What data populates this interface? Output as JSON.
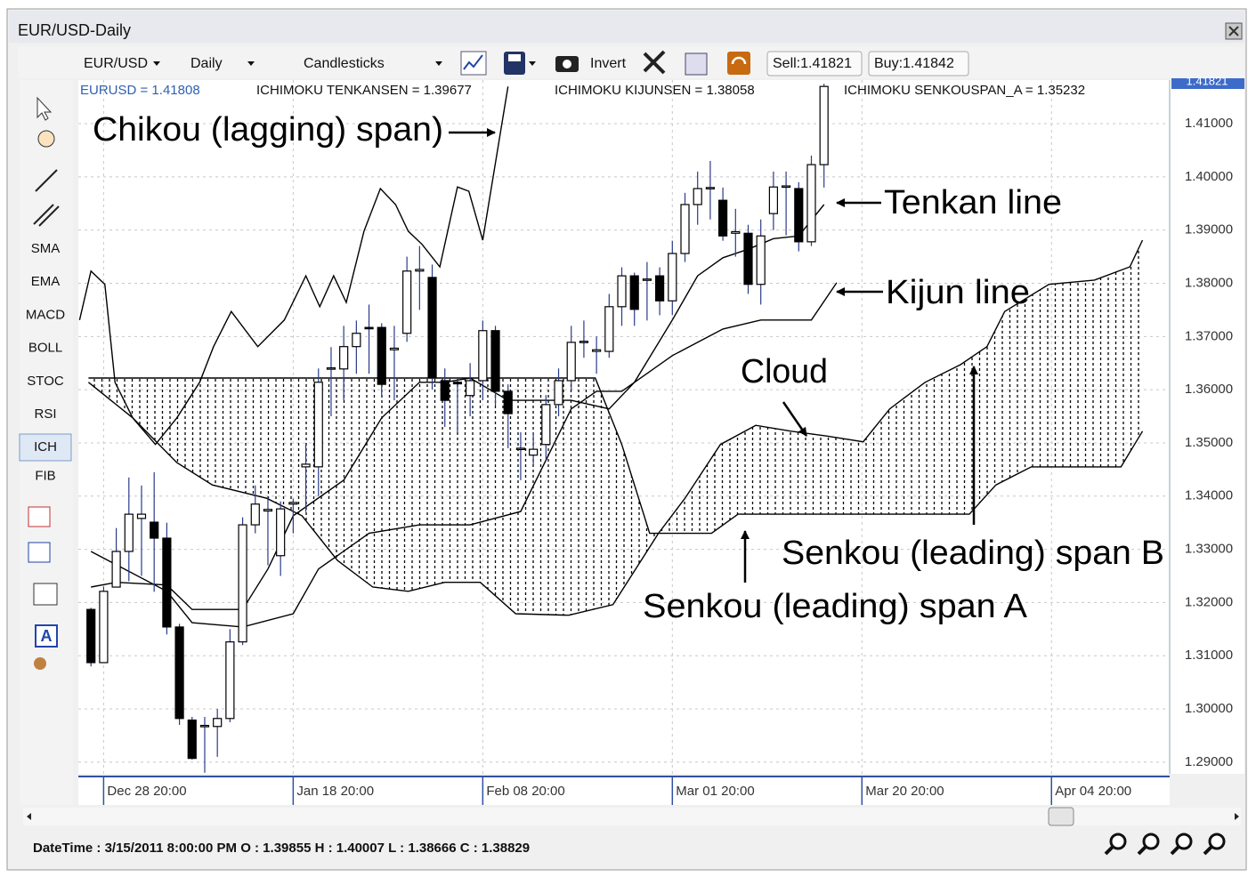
{
  "window": {
    "title": "EUR/USD-Daily"
  },
  "toolbar": {
    "symbol": "EUR/USD",
    "period": "Daily",
    "chart_type": "Candlesticks",
    "invert": "Invert",
    "sell": "Sell:1.41821",
    "buy": "Buy:1.41842"
  },
  "tools": [
    "SMA",
    "EMA",
    "MACD",
    "BOLL",
    "STOC",
    "RSI",
    "ICH",
    "FIB"
  ],
  "status": "DateTime : 3/15/2011 8:00:00 PM O : 1.39855 H : 1.40007 L : 1.38666 C : 1.38829",
  "chart_data": {
    "type": "candlestick",
    "indicator_labels": [
      "EURUSD = 1.41808",
      "ICHIMOKU TENKANSEN = 1.39677",
      "ICHIMOKU KIJUNSEN = 1.38058",
      "ICHIMOKU SENKOUSPAN_A = 1.35232"
    ],
    "price_label": "1.41821",
    "annotations": [
      "Chikou (lagging) span)",
      "Tenkan line",
      "Kijun line",
      "Cloud",
      "Senkou (leading) span B",
      "Senkou (leading) span A"
    ],
    "xlim": [
      -1,
      85.35
    ],
    "xticks": [
      {
        "value": 1,
        "label": "Dec 28 20:00"
      },
      {
        "value": 16,
        "label": "Jan 18 20:00"
      },
      {
        "value": 31,
        "label": "Feb 08 20:00"
      },
      {
        "value": 46,
        "label": "Mar 01 20:00"
      },
      {
        "value": 61,
        "label": "Mar 20 20:00"
      },
      {
        "value": 76,
        "label": "Apr 04 20:00"
      }
    ],
    "ylim": [
      1.2878,
      1.4182
    ],
    "yticks": [
      {
        "value": 1.29,
        "label": "1.29000"
      },
      {
        "value": 1.3,
        "label": "1.30000"
      },
      {
        "value": 1.31,
        "label": "1.31000"
      },
      {
        "value": 1.32,
        "label": "1.32000"
      },
      {
        "value": 1.33,
        "label": "1.33000"
      },
      {
        "value": 1.34,
        "label": "1.34000"
      },
      {
        "value": 1.35,
        "label": "1.35000"
      },
      {
        "value": 1.36,
        "label": "1.36000"
      },
      {
        "value": 1.37,
        "label": "1.37000"
      },
      {
        "value": 1.38,
        "label": "1.38000"
      },
      {
        "value": 1.39,
        "label": "1.39000"
      },
      {
        "value": 1.4,
        "label": "1.40000"
      },
      {
        "value": 1.41,
        "label": "1.41000"
      }
    ],
    "grid": true,
    "up_color": "#ffffff",
    "down_color": "#000000",
    "candles": {
      "open": [
        1.3187,
        1.3087,
        1.3229,
        1.3296,
        1.3358,
        1.3351,
        1.3321,
        1.3154,
        1.2979,
        1.2967,
        1.2967,
        1.2982,
        1.3126,
        1.3346,
        1.3372,
        1.3288,
        1.3385,
        1.3455,
        1.3455,
        1.3639,
        1.3639,
        1.3681,
        1.3717,
        1.3717,
        1.3675,
        1.3706,
        1.3823,
        1.3811,
        1.3617,
        1.3614,
        1.3589,
        1.3617,
        1.3711,
        1.3597,
        1.3488,
        1.3477,
        1.3497,
        1.3572,
        1.3617,
        1.3689,
        1.3672,
        1.3672,
        1.3756,
        1.3814,
        1.3806,
        1.3814,
        1.3767,
        1.3856,
        1.3948,
        1.3978,
        1.3956,
        1.3894,
        1.3894,
        1.3798,
        1.3931,
        1.3981,
        1.3978,
        1.3878,
        1.4023
      ],
      "high": [
        1.319,
        1.323,
        1.334,
        1.3435,
        1.342,
        1.3445,
        1.335,
        1.316,
        1.2985,
        1.2985,
        1.3,
        1.315,
        1.336,
        1.342,
        1.34,
        1.339,
        1.3395,
        1.35,
        1.364,
        1.368,
        1.372,
        1.373,
        1.376,
        1.3725,
        1.372,
        1.385,
        1.387,
        1.3835,
        1.364,
        1.362,
        1.365,
        1.373,
        1.372,
        1.361,
        1.352,
        1.352,
        1.359,
        1.364,
        1.372,
        1.373,
        1.37,
        1.378,
        1.383,
        1.382,
        1.384,
        1.383,
        1.388,
        1.397,
        1.401,
        1.403,
        1.398,
        1.394,
        1.391,
        1.392,
        1.401,
        1.401,
        1.399,
        1.404,
        1.4175
      ],
      "low": [
        1.308,
        1.3087,
        1.3229,
        1.324,
        1.325,
        1.322,
        1.314,
        1.297,
        1.2905,
        1.288,
        1.291,
        1.2975,
        1.312,
        1.333,
        1.327,
        1.325,
        1.333,
        1.337,
        1.34,
        1.355,
        1.358,
        1.363,
        1.363,
        1.359,
        1.358,
        1.369,
        1.375,
        1.36,
        1.353,
        1.352,
        1.355,
        1.358,
        1.357,
        1.349,
        1.343,
        1.346,
        1.347,
        1.355,
        1.36,
        1.366,
        1.363,
        1.366,
        1.372,
        1.372,
        1.373,
        1.374,
        1.374,
        1.384,
        1.391,
        1.392,
        1.388,
        1.385,
        1.378,
        1.376,
        1.39,
        1.389,
        1.386,
        1.387,
        1.398
      ],
      "close": [
        1.3087,
        1.3221,
        1.3296,
        1.3366,
        1.3366,
        1.3321,
        1.3154,
        1.2982,
        1.2907,
        1.2969,
        1.2982,
        1.3126,
        1.3346,
        1.3385,
        1.3375,
        1.3376,
        1.3388,
        1.346,
        1.3614,
        1.3641,
        1.3681,
        1.3706,
        1.3715,
        1.361,
        1.3678,
        1.3823,
        1.3826,
        1.3622,
        1.358,
        1.3611,
        1.3617,
        1.3711,
        1.3597,
        1.3555,
        1.349,
        1.3488,
        1.3572,
        1.3617,
        1.3689,
        1.3691,
        1.3675,
        1.3756,
        1.3814,
        1.3751,
        1.3808,
        1.3767,
        1.3856,
        1.3948,
        1.3978,
        1.398,
        1.3889,
        1.3897,
        1.3798,
        1.3889,
        1.3981,
        1.3983,
        1.3878,
        1.4023,
        1.417
      ]
    },
    "series": [
      {
        "color": "#000000",
        "x": [
          0,
          2,
          6,
          8,
          12,
          14,
          16,
          20,
          23,
          26,
          28,
          30,
          33,
          38,
          41,
          43,
          46,
          48,
          50,
          52,
          54,
          56,
          58
        ],
        "values": [
          1.3229,
          1.3238,
          1.3233,
          1.3187,
          1.3187,
          1.3263,
          1.3363,
          1.343,
          1.3547,
          1.3614,
          1.3614,
          1.3622,
          1.358,
          1.358,
          1.3564,
          1.3614,
          1.3731,
          1.3814,
          1.3848,
          1.3864,
          1.3884,
          1.3889,
          1.3948
        ]
      },
      {
        "color": "#000000",
        "x": [
          0,
          6,
          8,
          12,
          16,
          18,
          22,
          26,
          30,
          34,
          38,
          40,
          42,
          46,
          50,
          53,
          57,
          59
        ],
        "values": [
          1.3296,
          1.3221,
          1.3162,
          1.3154,
          1.3179,
          1.3263,
          1.333,
          1.3346,
          1.3346,
          1.3371,
          1.3564,
          1.3597,
          1.3597,
          1.3664,
          1.3714,
          1.3731,
          1.3731,
          1.3801
        ]
      },
      {
        "color": "#000000",
        "x": [
          -0.9,
          0,
          1.1,
          1.9,
          3.3,
          5.1,
          6.8,
          8.6,
          9.7,
          11.1,
          13.2,
          15.3,
          17.0,
          18.1,
          19.2,
          20.2,
          21.6,
          22.9,
          24.1,
          25.1,
          26.2,
          27.6,
          29.0,
          29.9,
          31.0,
          33.0
        ],
        "values": [
          1.3731,
          1.3823,
          1.3798,
          1.3614,
          1.3547,
          1.3497,
          1.3547,
          1.3614,
          1.3681,
          1.3747,
          1.3681,
          1.3731,
          1.3814,
          1.3756,
          1.3814,
          1.3764,
          1.3898,
          1.3978,
          1.3948,
          1.3898,
          1.3873,
          1.3831,
          1.3981,
          1.3973,
          1.3881,
          1.417
        ]
      },
      {
        "color": "#000000",
        "x": [
          -0.2,
          3.3,
          6.8,
          9.6,
          13.9,
          16.7,
          19.5,
          22.3,
          25.1,
          28.0,
          30.8,
          33.6,
          37.8,
          41.3,
          44.9,
          47.0,
          49.8,
          52.6,
          55.4,
          58.2,
          61.1,
          63.2,
          66.0,
          68.8,
          70.9,
          72.3,
          75.8,
          79.4,
          82.2,
          83.2
        ],
        "values": [
          1.3614,
          1.3547,
          1.3463,
          1.3421,
          1.3396,
          1.3363,
          1.3279,
          1.3229,
          1.3221,
          1.3238,
          1.3238,
          1.3179,
          1.3176,
          1.3196,
          1.333,
          1.3396,
          1.3497,
          1.3533,
          1.3522,
          1.3513,
          1.3502,
          1.3564,
          1.3614,
          1.3647,
          1.3681,
          1.3747,
          1.3798,
          1.3806,
          1.3831,
          1.3881
        ]
      },
      {
        "color": "#000000",
        "x": [
          -0.2,
          39.9,
          42.0,
          44.2,
          49.1,
          51.2,
          69.5,
          71.6,
          74.4,
          81.5,
          83.2
        ],
        "values": [
          1.3622,
          1.3622,
          1.3497,
          1.333,
          1.333,
          1.3366,
          1.3366,
          1.3421,
          1.3455,
          1.3455,
          1.3522
        ]
      }
    ]
  }
}
